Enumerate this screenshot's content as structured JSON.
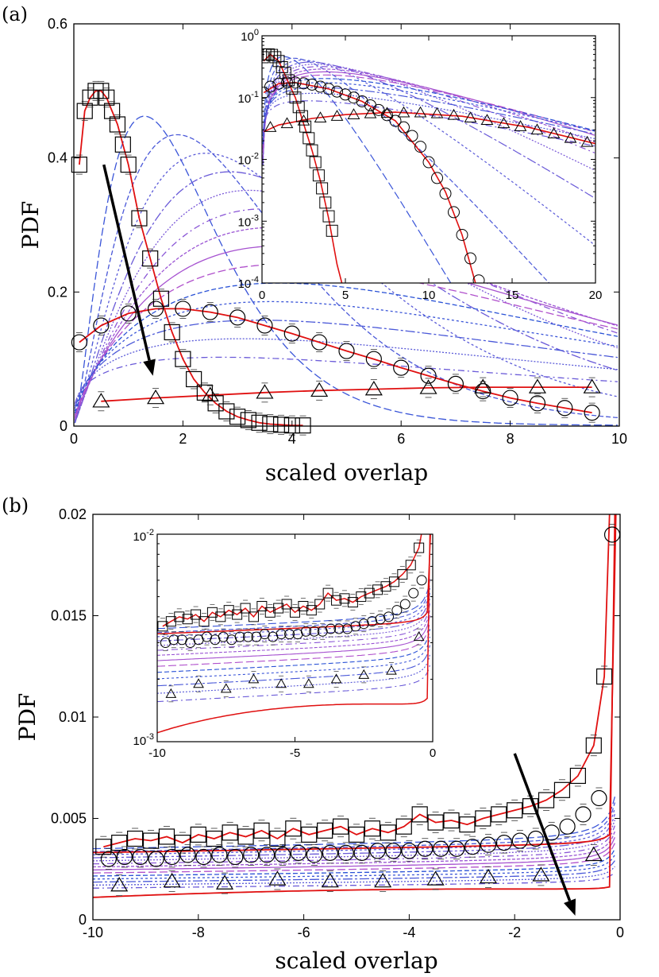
{
  "chart_data": [
    {
      "panel": "(a)",
      "type": "line",
      "xlabel": "scaled overlap",
      "ylabel": "PDF",
      "xlim": [
        0,
        10
      ],
      "ylim": [
        0,
        0.6
      ],
      "x_ticks": [
        "0",
        "2",
        "4",
        "6",
        "8",
        "10"
      ],
      "y_ticks": [
        "0",
        "0.2",
        "0.4",
        "0.6"
      ],
      "series_curves": {
        "count": 16,
        "colors": [
          "#2a52d6",
          "#3a55d8",
          "#4a58d8",
          "#5a5ad8",
          "#6a5ad8",
          "#7a58d8",
          "#8a56d6",
          "#9a54d4",
          "#a652d0",
          "#b050cc"
        ]
      },
      "series": [
        {
          "marker": "square",
          "color": "#e01010",
          "x": [
            0.1,
            0.2,
            0.3,
            0.4,
            0.5,
            0.6,
            0.7,
            0.8,
            0.9,
            1.0,
            1.2,
            1.4,
            1.6,
            1.8,
            2.0,
            2.2,
            2.4,
            2.6,
            2.8,
            3.0,
            3.2,
            3.4,
            3.6,
            3.8,
            4.0,
            4.2
          ],
          "y": [
            0.39,
            0.47,
            0.49,
            0.5,
            0.5,
            0.49,
            0.47,
            0.45,
            0.42,
            0.39,
            0.31,
            0.25,
            0.19,
            0.14,
            0.1,
            0.07,
            0.05,
            0.034,
            0.022,
            0.014,
            0.009,
            0.005,
            0.003,
            0.002,
            0.001,
            0.001
          ]
        },
        {
          "marker": "circle",
          "color": "#e01010",
          "x": [
            0.1,
            0.5,
            1.0,
            1.5,
            2.0,
            2.5,
            3.0,
            3.5,
            4.0,
            4.5,
            5.0,
            5.5,
            6.0,
            6.5,
            7.0,
            7.5,
            8.0,
            8.5,
            9.0,
            9.5
          ],
          "y": [
            0.125,
            0.15,
            0.168,
            0.175,
            0.175,
            0.17,
            0.162,
            0.15,
            0.138,
            0.125,
            0.112,
            0.1,
            0.087,
            0.075,
            0.063,
            0.052,
            0.042,
            0.034,
            0.027,
            0.02
          ]
        },
        {
          "marker": "triangle",
          "color": "#e01010",
          "x": [
            0.5,
            1.5,
            2.5,
            3.5,
            4.5,
            5.5,
            6.5,
            7.5,
            8.5,
            9.5
          ],
          "y": [
            0.037,
            0.042,
            0.046,
            0.05,
            0.053,
            0.055,
            0.057,
            0.058,
            0.058,
            0.058
          ]
        }
      ],
      "inset": {
        "xlim": [
          0,
          20
        ],
        "ylim_log10": [
          -4,
          0
        ],
        "x_ticks": [
          "0",
          "5",
          "10",
          "15",
          "20"
        ],
        "y_ticks_base": "10",
        "y_ticks_exp": [
          "0",
          "-1",
          "-2",
          "-3",
          "-4"
        ]
      }
    },
    {
      "panel": "(b)",
      "type": "line",
      "xlabel": "scaled overlap",
      "ylabel": "PDF",
      "xlim": [
        -10,
        0
      ],
      "ylim": [
        0,
        0.02
      ],
      "x_ticks": [
        "-10",
        "-8",
        "-6",
        "-4",
        "-2",
        "0"
      ],
      "y_ticks": [
        "0",
        "0.005",
        "0.01",
        "0.015",
        "0.02"
      ],
      "series_curves": {
        "count": 16,
        "colors": [
          "#2a52d6",
          "#3a55d8",
          "#4a58d8",
          "#5a5ad8",
          "#6a5ad8",
          "#7a58d8",
          "#8a56d6",
          "#9a54d4",
          "#a652d0",
          "#b050cc"
        ]
      },
      "series": [
        {
          "marker": "square",
          "color": "#e01010",
          "x": [
            -9.8,
            -9.5,
            -9.2,
            -8.9,
            -8.6,
            -8.3,
            -8.0,
            -7.7,
            -7.4,
            -7.1,
            -6.8,
            -6.5,
            -6.2,
            -5.9,
            -5.6,
            -5.3,
            -5.0,
            -4.7,
            -4.4,
            -4.1,
            -3.8,
            -3.5,
            -3.2,
            -2.9,
            -2.6,
            -2.3,
            -2.0,
            -1.7,
            -1.4,
            -1.1,
            -0.8,
            -0.5,
            -0.3
          ],
          "y": [
            0.0036,
            0.0038,
            0.004,
            0.0039,
            0.0041,
            0.0038,
            0.0042,
            0.004,
            0.0043,
            0.0041,
            0.0044,
            0.004,
            0.0045,
            0.0042,
            0.0044,
            0.0046,
            0.0042,
            0.0045,
            0.0043,
            0.0046,
            0.0052,
            0.0048,
            0.0049,
            0.0047,
            0.005,
            0.0052,
            0.0054,
            0.0056,
            0.0059,
            0.0064,
            0.0071,
            0.0086,
            0.012
          ]
        },
        {
          "marker": "circle",
          "color": "#e01010",
          "x": [
            -9.7,
            -9.4,
            -9.1,
            -8.8,
            -8.5,
            -8.2,
            -7.9,
            -7.6,
            -7.3,
            -7.0,
            -6.7,
            -6.4,
            -6.1,
            -5.8,
            -5.5,
            -5.2,
            -4.9,
            -4.6,
            -4.3,
            -4.0,
            -3.7,
            -3.4,
            -3.1,
            -2.8,
            -2.5,
            -2.2,
            -1.9,
            -1.6,
            -1.3,
            -1.0,
            -0.7,
            -0.4,
            -0.15
          ],
          "y": [
            0.003,
            0.0031,
            0.0031,
            0.003,
            0.0031,
            0.0032,
            0.0031,
            0.0032,
            0.0031,
            0.0032,
            0.0032,
            0.0032,
            0.0033,
            0.0032,
            0.0033,
            0.0033,
            0.0033,
            0.0034,
            0.0034,
            0.0034,
            0.0035,
            0.0035,
            0.0035,
            0.0036,
            0.0037,
            0.0038,
            0.0039,
            0.004,
            0.0043,
            0.0046,
            0.0052,
            0.006,
            0.019
          ]
        },
        {
          "marker": "triangle",
          "color": "#e01010",
          "x": [
            -9.5,
            -8.5,
            -7.5,
            -6.5,
            -5.5,
            -4.5,
            -3.5,
            -2.5,
            -1.5,
            -0.5
          ],
          "y": [
            0.0017,
            0.0019,
            0.0018,
            0.002,
            0.0019,
            0.0019,
            0.002,
            0.0021,
            0.0022,
            0.0032
          ]
        }
      ],
      "inset": {
        "xlim": [
          -10,
          0
        ],
        "ylim_log10": [
          -3,
          -2
        ],
        "x_ticks": [
          "-10",
          "-5",
          "0"
        ],
        "y_ticks_base": "10",
        "y_ticks_exp": [
          "-2",
          "-3"
        ]
      }
    }
  ]
}
